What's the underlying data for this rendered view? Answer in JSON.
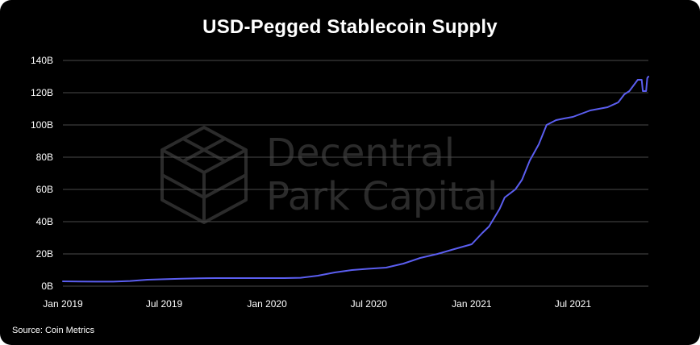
{
  "page": {
    "title": "USD-Pegged Stablecoin Supply",
    "source": "Source: Coin Metrics",
    "watermark": {
      "line1": "Decentral",
      "line2": "Park Capital",
      "icon": "cube-logo-icon"
    }
  },
  "colors": {
    "background": "#000000",
    "line": "#5b5ef0",
    "grid": "#4a4a4a",
    "text": "#ffffff",
    "watermark": "#2b2b2b"
  },
  "chart_data": {
    "type": "line",
    "title": "USD-Pegged Stablecoin Supply",
    "xlabel": "",
    "ylabel": "",
    "xlim": [
      "2019-01-01",
      "2021-11-13"
    ],
    "ylim": [
      0,
      140
    ],
    "grid": true,
    "x_ticks": [
      {
        "date": "2019-01-01",
        "label": "Jan 2019"
      },
      {
        "date": "2019-07-01",
        "label": "Jul 2019"
      },
      {
        "date": "2020-01-01",
        "label": "Jan 2020"
      },
      {
        "date": "2020-07-01",
        "label": "Jul 2020"
      },
      {
        "date": "2021-01-01",
        "label": "Jan 2021"
      },
      {
        "date": "2021-07-01",
        "label": "Jul 2021"
      }
    ],
    "y_ticks": [
      {
        "value": 0,
        "label": "0B"
      },
      {
        "value": 20,
        "label": "20B"
      },
      {
        "value": 40,
        "label": "40B"
      },
      {
        "value": 60,
        "label": "60B"
      },
      {
        "value": 80,
        "label": "80B"
      },
      {
        "value": 100,
        "label": "100B"
      },
      {
        "value": 120,
        "label": "120B"
      },
      {
        "value": 140,
        "label": "140B"
      }
    ],
    "series": [
      {
        "x": [
          "2019-01-01",
          "2019-02-01",
          "2019-03-01",
          "2019-04-01",
          "2019-05-01",
          "2019-06-01",
          "2019-07-01",
          "2019-08-01",
          "2019-09-01",
          "2019-10-01",
          "2019-11-01",
          "2019-12-01",
          "2020-01-01",
          "2020-02-01",
          "2020-03-01",
          "2020-04-01",
          "2020-05-01",
          "2020-06-01",
          "2020-07-01",
          "2020-08-01",
          "2020-09-01",
          "2020-10-01",
          "2020-11-01",
          "2020-12-01",
          "2021-01-01",
          "2021-01-20",
          "2021-02-01",
          "2021-02-20",
          "2021-03-01",
          "2021-03-20",
          "2021-04-01",
          "2021-04-15",
          "2021-05-01",
          "2021-05-15",
          "2021-06-01",
          "2021-06-15",
          "2021-07-01",
          "2021-08-01",
          "2021-09-01",
          "2021-09-20",
          "2021-10-01",
          "2021-10-10",
          "2021-10-25",
          "2021-11-01",
          "2021-11-03",
          "2021-11-09",
          "2021-11-11",
          "2021-11-13"
        ],
        "values": [
          3.0,
          2.9,
          2.8,
          2.8,
          3.2,
          4.0,
          4.3,
          4.6,
          4.9,
          5.0,
          5.0,
          5.0,
          5.0,
          5.0,
          5.2,
          6.5,
          8.5,
          10.0,
          10.8,
          11.5,
          14.0,
          17.5,
          20.0,
          23.0,
          26.0,
          33.0,
          37.0,
          48.0,
          55.0,
          60.0,
          66.0,
          78.0,
          88.0,
          100.0,
          103.0,
          104.0,
          105.0,
          109.0,
          111.0,
          114.0,
          119.0,
          121.0,
          128.0,
          128.0,
          121.0,
          121.0,
          129.0,
          130.0
        ]
      }
    ]
  }
}
